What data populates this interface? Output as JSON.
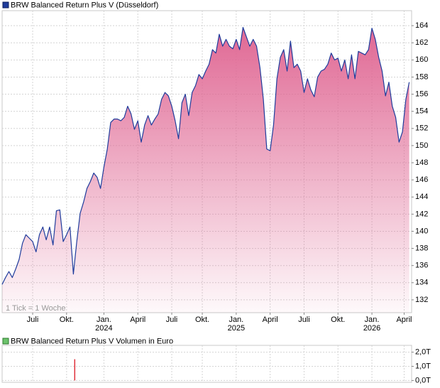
{
  "chart_data": [
    {
      "type": "area",
      "title": "BRW Balanced Return Plus V (Düsseldorf)",
      "annotation": "1 Tick = 1 Woche",
      "xlim": [
        0,
        120.7
      ],
      "ylim": [
        130.5,
        165.75
      ],
      "yticks": [
        132,
        134,
        136,
        138,
        140,
        142,
        144,
        146,
        148,
        150,
        152,
        154,
        156,
        158,
        160,
        162,
        164
      ],
      "xticks": [
        {
          "value": 9,
          "label": "Juli"
        },
        {
          "value": 19,
          "label": "Okt."
        },
        {
          "value": 30,
          "label": "Jan."
        },
        {
          "value": 40,
          "label": "April"
        },
        {
          "value": 50,
          "label": "Juli"
        },
        {
          "value": 59,
          "label": "Okt."
        },
        {
          "value": 69,
          "label": "Jan."
        },
        {
          "value": 79,
          "label": "April"
        },
        {
          "value": 89,
          "label": "Juli"
        },
        {
          "value": 99,
          "label": "Okt."
        },
        {
          "value": 109,
          "label": "Jan."
        },
        {
          "value": 118.5,
          "label": "April"
        }
      ],
      "xtick_years": [
        {
          "value": 30,
          "label": "2024"
        },
        {
          "value": 69,
          "label": "2025"
        },
        {
          "value": 109,
          "label": "2026"
        }
      ],
      "grid": true,
      "series": [
        {
          "name": "BRW Balanced Return Plus V (Düsseldorf)",
          "color": "#1f3c9c",
          "fill": "#e06894",
          "values": [
            133.8,
            134.6,
            135.3,
            134.6,
            135.6,
            136.7,
            138.6,
            139.6,
            139.2,
            138.8,
            137.6,
            139.6,
            140.5,
            139,
            140.5,
            138.4,
            142.4,
            142.5,
            138.8,
            139.6,
            140.5,
            135,
            138.8,
            142.1,
            143.4,
            145,
            145.8,
            146.8,
            146.3,
            145,
            147.5,
            149.6,
            152.7,
            153.1,
            153.1,
            152.9,
            153.3,
            154.6,
            153.7,
            151.9,
            152.9,
            150.4,
            152.4,
            153.5,
            152.4,
            153.1,
            153.7,
            155.4,
            156.2,
            155.8,
            154.6,
            152.9,
            150.8,
            155,
            156,
            153.5,
            156.2,
            157,
            158.3,
            157.8,
            158.7,
            159.5,
            161.2,
            160.8,
            163,
            161.6,
            162.4,
            161.6,
            161.3,
            162.4,
            161.2,
            163.8,
            162.7,
            161.6,
            162.4,
            161.6,
            159.1,
            155.4,
            149.6,
            149.4,
            152.4,
            157.8,
            160.3,
            161.2,
            158.7,
            162.2,
            159.1,
            159.5,
            158.7,
            156.2,
            157.8,
            156.5,
            155.7,
            158,
            158.7,
            158.9,
            159.5,
            160.8,
            160,
            160.2,
            158.7,
            160,
            157.8,
            160.6,
            157.8,
            161,
            160.8,
            160.6,
            161.2,
            163.7,
            162.4,
            160.3,
            158.7,
            155.8,
            157.4,
            154.6,
            153.3,
            150.4,
            151.6,
            155.4,
            157.4
          ]
        }
      ]
    },
    {
      "type": "bar",
      "title": "BRW Balanced Return Plus V Volumen in Euro",
      "xlim": [
        0,
        120.7
      ],
      "ylim": [
        -0.13,
        2.48
      ],
      "yticks": [
        {
          "value": 0,
          "label": "0,0T"
        },
        {
          "value": 1,
          "label": "1,0T"
        },
        {
          "value": 2,
          "label": "2,0T"
        }
      ],
      "xticks": [
        9,
        19,
        30,
        40,
        50,
        59,
        69,
        79,
        89,
        99,
        109,
        118.5
      ],
      "grid": true,
      "series": [
        {
          "name": "BRW Balanced Return Plus V Volumen in Euro",
          "color": "#e0303a",
          "x": [
            21.4
          ],
          "values": [
            1.5
          ]
        }
      ]
    }
  ]
}
